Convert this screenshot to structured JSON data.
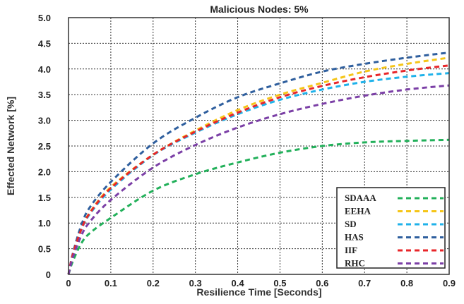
{
  "chart_data": {
    "type": "line",
    "title": "Malicious Nodes: 5%",
    "xlabel": "Resilience Time [Seconds]",
    "ylabel": "Effected Network [%]",
    "xlim": [
      0,
      0.9
    ],
    "ylim": [
      0,
      5.0
    ],
    "grid": true,
    "legend_position": "bottom-right",
    "line_style": "dashed",
    "x_ticks": [
      "0",
      "0.1",
      "0.2",
      "0.3",
      "0.4",
      "0.5",
      "0.6",
      "0.7",
      "0.8",
      "0.9"
    ],
    "y_ticks": [
      "0",
      "0.5",
      "1.0",
      "1.5",
      "2.0",
      "2.5",
      "3.0",
      "3.5",
      "4.0",
      "4.5",
      "5.0"
    ],
    "x": [
      0,
      0.01,
      0.03,
      0.05,
      0.1,
      0.2,
      0.3,
      0.4,
      0.5,
      0.6,
      0.7,
      0.8,
      0.9
    ],
    "series": [
      {
        "name": "SDAAA",
        "color": "#22b05a",
        "values": [
          0,
          0.25,
          0.6,
          0.8,
          1.1,
          1.63,
          1.95,
          2.18,
          2.37,
          2.5,
          2.57,
          2.6,
          2.62
        ]
      },
      {
        "name": "EEHA",
        "color": "#f5c518",
        "values": [
          0,
          0.38,
          0.88,
          1.2,
          1.7,
          2.33,
          2.8,
          3.2,
          3.5,
          3.73,
          3.95,
          4.1,
          4.22
        ]
      },
      {
        "name": "SD",
        "color": "#1fb2ea",
        "values": [
          0,
          0.37,
          0.86,
          1.17,
          1.65,
          2.32,
          2.76,
          3.12,
          3.4,
          3.6,
          3.75,
          3.85,
          3.92
        ]
      },
      {
        "name": "HAS",
        "color": "#2f5f9e",
        "values": [
          0,
          0.4,
          0.95,
          1.3,
          1.8,
          2.55,
          3.05,
          3.45,
          3.72,
          3.95,
          4.1,
          4.22,
          4.32
        ]
      },
      {
        "name": "IIF",
        "color": "#e8262a",
        "values": [
          0,
          0.38,
          0.87,
          1.19,
          1.68,
          2.33,
          2.78,
          3.15,
          3.45,
          3.67,
          3.84,
          3.97,
          4.07
        ]
      },
      {
        "name": "RHC",
        "color": "#7b3fa6",
        "values": [
          0,
          0.32,
          0.75,
          1.02,
          1.45,
          2.08,
          2.52,
          2.86,
          3.12,
          3.32,
          3.48,
          3.6,
          3.68
        ]
      }
    ]
  }
}
